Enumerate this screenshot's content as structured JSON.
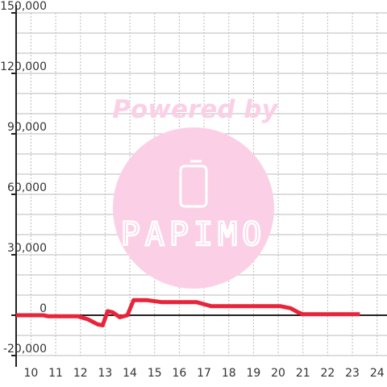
{
  "watermark": {
    "powered_by": "Powered by",
    "logo_text": "PAPIMO",
    "color": "#fbd0e6",
    "text_color": "#ffffff"
  },
  "chart_data": {
    "type": "line",
    "title": "",
    "xlabel": "",
    "ylabel": "",
    "xlim": [
      9.4,
      24.4
    ],
    "ylim": [
      -20000,
      150000
    ],
    "x_ticks": [
      10,
      11,
      12,
      13,
      14,
      15,
      16,
      17,
      18,
      19,
      20,
      21,
      22,
      23,
      24
    ],
    "y_ticks": [
      150000,
      120000,
      90000,
      60000,
      30000,
      0,
      -20000
    ],
    "y_tick_labels": [
      "150,000",
      "120,000",
      "90,000",
      "60,000",
      "30,000",
      "0",
      "-20,000"
    ],
    "grid": true,
    "series": [
      {
        "color": "#e8243a",
        "points": [
          [
            9.4,
            0
          ],
          [
            10.5,
            0
          ],
          [
            10.7,
            -500
          ],
          [
            11.5,
            -500
          ],
          [
            11.9,
            -500
          ],
          [
            12.3,
            -2000
          ],
          [
            12.7,
            -4500
          ],
          [
            12.9,
            -5000
          ],
          [
            13.1,
            2000
          ],
          [
            13.3,
            1500
          ],
          [
            13.6,
            -1000
          ],
          [
            13.9,
            0
          ],
          [
            14.15,
            7500
          ],
          [
            14.7,
            7500
          ],
          [
            15.3,
            6500
          ],
          [
            16.3,
            6500
          ],
          [
            16.7,
            6500
          ],
          [
            17.0,
            5500
          ],
          [
            17.3,
            4500
          ],
          [
            18.0,
            4500
          ],
          [
            18.9,
            4500
          ],
          [
            20.1,
            4500
          ],
          [
            20.5,
            3500
          ],
          [
            20.8,
            1500
          ],
          [
            21.0,
            500
          ],
          [
            21.5,
            500
          ],
          [
            23.3,
            500
          ]
        ]
      }
    ]
  }
}
